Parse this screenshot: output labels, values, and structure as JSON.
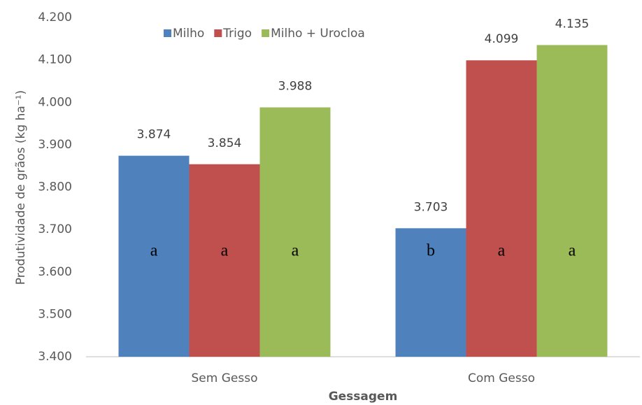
{
  "chart_data": {
    "type": "bar",
    "ylabel": "Produtividade de grãos (kg ha⁻¹)",
    "xlabel": "Gessagem",
    "categories": [
      "Sem Gesso",
      "Com Gesso"
    ],
    "series": [
      {
        "name": "Milho",
        "color": "#4f81bd",
        "values": [
          3874,
          3703
        ],
        "value_labels": [
          "3.874",
          "3.703"
        ],
        "letters": [
          "a",
          "b"
        ]
      },
      {
        "name": "Trigo",
        "color": "#c0504d",
        "values": [
          3854,
          4099
        ],
        "value_labels": [
          "3.854",
          "4.099"
        ],
        "letters": [
          "a",
          "a"
        ]
      },
      {
        "name": "Milho + Urocloa",
        "color": "#9bbb59",
        "values": [
          3988,
          4135
        ],
        "value_labels": [
          "3.988",
          "4.135"
        ],
        "letters": [
          "a",
          "a"
        ]
      }
    ],
    "ylim": [
      3400,
      4200
    ],
    "yticks": [
      {
        "value": 3400,
        "label": "3.400"
      },
      {
        "value": 3500,
        "label": "3.500"
      },
      {
        "value": 3600,
        "label": "3.600"
      },
      {
        "value": 3700,
        "label": "3.700"
      },
      {
        "value": 3800,
        "label": "3.800"
      },
      {
        "value": 3900,
        "label": "3.900"
      },
      {
        "value": 4000,
        "label": "4.000"
      },
      {
        "value": 4100,
        "label": "4.100"
      },
      {
        "value": 4200,
        "label": "4.200"
      }
    ],
    "grid": false,
    "legend": "top"
  }
}
